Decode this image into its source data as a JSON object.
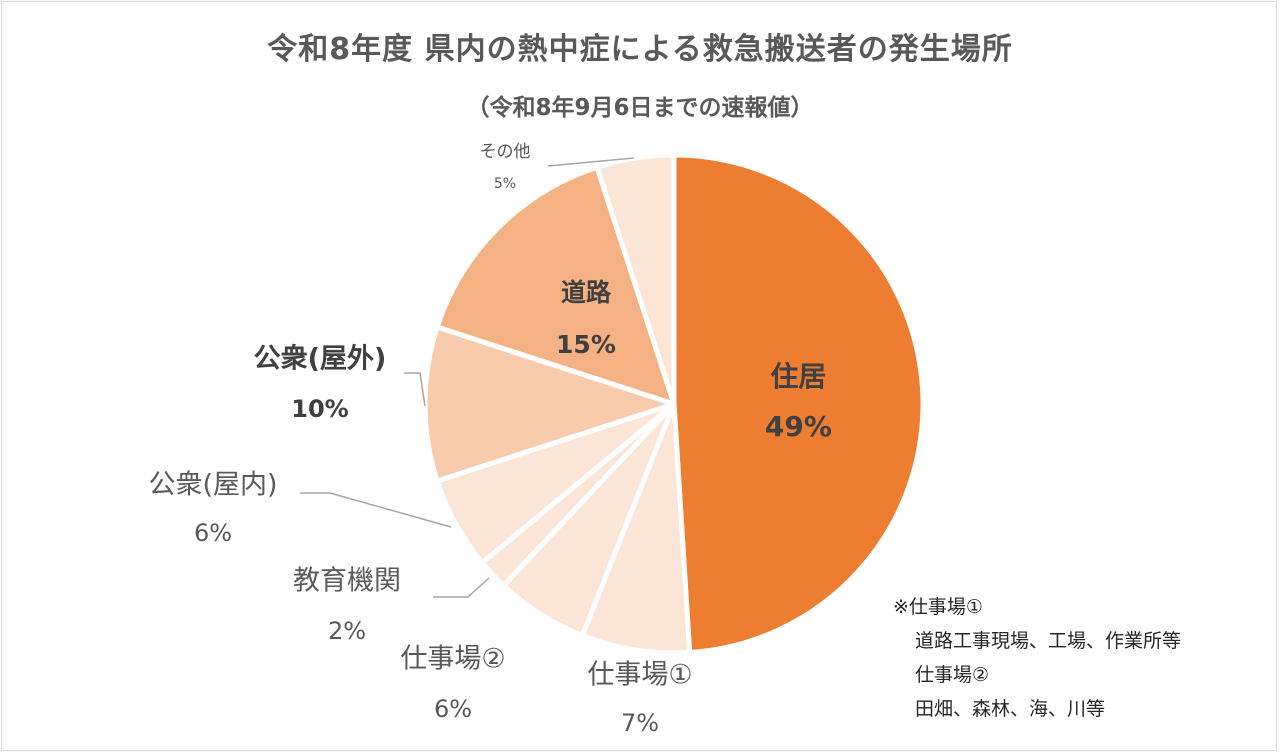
{
  "chart_data": {
    "type": "pie",
    "title": "令和8年度 県内の熱中症による救急搬送者の発生場所",
    "subtitle": "（令和8年9月6日までの速報値）",
    "slices": [
      {
        "label": "住居",
        "value": 49,
        "value_label": "49%",
        "color": "#ed7d31"
      },
      {
        "label": "仕事場①",
        "value": 7,
        "value_label": "7%",
        "color": "#fbe5d6"
      },
      {
        "label": "仕事場②",
        "value": 6,
        "value_label": "6%",
        "color": "#fbe5d6"
      },
      {
        "label": "教育機関",
        "value": 2,
        "value_label": "2%",
        "color": "#fbe5d6"
      },
      {
        "label": "公衆(屋内)",
        "value": 6,
        "value_label": "6%",
        "color": "#fbe5d6"
      },
      {
        "label": "公衆(屋外)",
        "value": 10,
        "value_label": "10%",
        "color": "#f8cbad"
      },
      {
        "label": "道路",
        "value": 15,
        "value_label": "15%",
        "color": "#f4b183"
      },
      {
        "label": "その他",
        "value": 5,
        "value_label": "5%",
        "color": "#fbe5d6"
      }
    ],
    "legend": "none"
  },
  "note": {
    "lines": [
      "※仕事場①",
      "道路工事現場、工場、作業所等",
      "仕事場②",
      "田畑、森林、海、川等"
    ]
  }
}
